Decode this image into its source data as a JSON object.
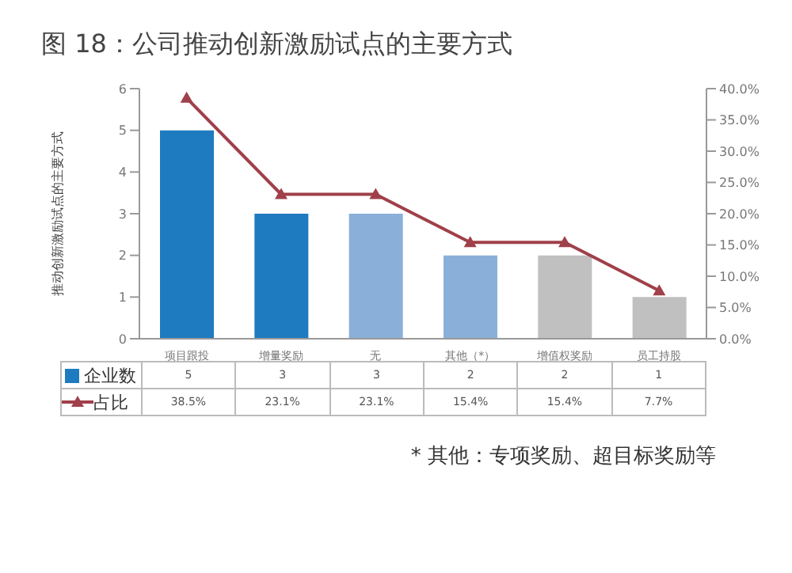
{
  "chart_data": {
    "type": "bar",
    "title": "图 18：公司推动创新激励试点的主要方式",
    "ylabel": "推动创新激励试点的主要方式",
    "categories": [
      "项目跟投",
      "增量奖励",
      "无",
      "其他（*）",
      "增值权奖励",
      "员工持股"
    ],
    "series": [
      {
        "name": "企业数",
        "color": "#1f7bbf",
        "colors": [
          "#1f7bbf",
          "#1f7bbf",
          "#8ab0d9",
          "#8ab0d9",
          "#c0c0c0",
          "#c0c0c0"
        ],
        "values": [
          5,
          3,
          3,
          2,
          2,
          1
        ],
        "value_labels": [
          "5",
          "3",
          "3",
          "2",
          "2",
          "1"
        ]
      },
      {
        "name": "占比",
        "type": "line",
        "axis": "y2",
        "color": "#a0404a",
        "values": [
          38.5,
          23.1,
          23.1,
          15.4,
          15.4,
          7.7
        ],
        "value_labels": [
          "38.5%",
          "23.1%",
          "23.1%",
          "15.4%",
          "15.4%",
          "7.7%"
        ]
      }
    ],
    "ylim": [
      0,
      6
    ],
    "yticks": [
      0,
      1,
      2,
      3,
      4,
      5,
      6
    ],
    "y2lim": [
      0,
      40
    ],
    "y2ticks": [
      {
        "value": 0,
        "label": "0.0%"
      },
      {
        "value": 5,
        "label": "5.0%"
      },
      {
        "value": 10,
        "label": "10.0%"
      },
      {
        "value": 15,
        "label": "15.0%"
      },
      {
        "value": 20,
        "label": "20.0%"
      },
      {
        "value": 25,
        "label": "25.0%"
      },
      {
        "value": 30,
        "label": "30.0%"
      },
      {
        "value": 35,
        "label": "35.0%"
      },
      {
        "value": 40,
        "label": "40.0%"
      }
    ],
    "marker": "triangle",
    "line_style": "solid",
    "legend": "bottom left",
    "grid": false,
    "annotations": [
      "* 其他：专项奖励、超目标奖励等"
    ]
  }
}
